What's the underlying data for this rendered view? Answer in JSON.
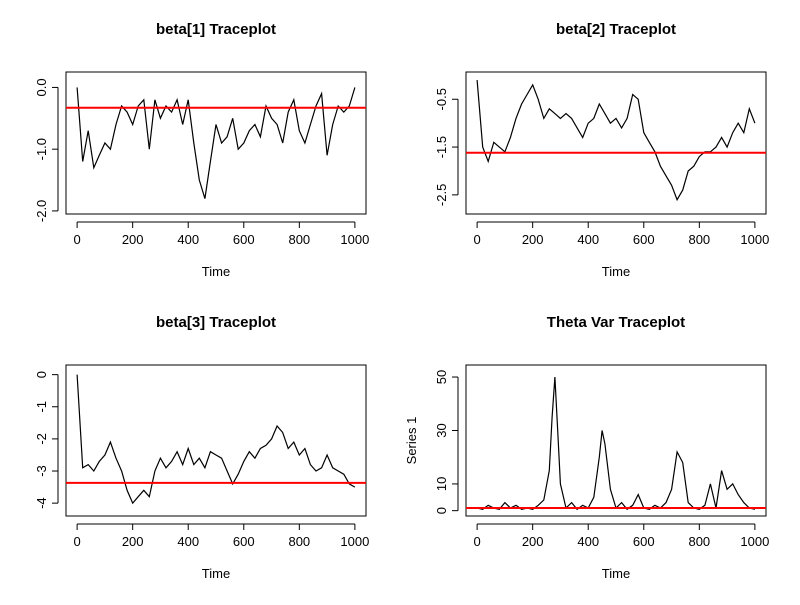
{
  "chart_data": [
    {
      "type": "line",
      "title": "beta[1] Traceplot",
      "xlabel": "Time",
      "xlim": [
        -40,
        1040
      ],
      "xticks": [
        0,
        200,
        400,
        600,
        800,
        1000
      ],
      "ylim": [
        -2.05,
        0.25
      ],
      "yticks": [
        {
          "value": 0,
          "label": "0.0"
        },
        {
          "value": -1,
          "label": "-1.0"
        },
        {
          "value": -2,
          "label": "-2.0"
        }
      ],
      "x": [
        0,
        20,
        40,
        60,
        80,
        100,
        120,
        140,
        160,
        180,
        200,
        220,
        240,
        260,
        280,
        300,
        320,
        340,
        360,
        380,
        400,
        420,
        440,
        460,
        480,
        500,
        520,
        540,
        560,
        580,
        600,
        620,
        640,
        660,
        680,
        700,
        720,
        740,
        760,
        780,
        800,
        820,
        840,
        860,
        880,
        900,
        920,
        940,
        960,
        980,
        1000
      ],
      "values": [
        0.0,
        -1.2,
        -0.7,
        -1.3,
        -1.1,
        -0.9,
        -1.0,
        -0.6,
        -0.3,
        -0.4,
        -0.6,
        -0.3,
        -0.2,
        -1.0,
        -0.2,
        -0.5,
        -0.3,
        -0.4,
        -0.2,
        -0.6,
        -0.2,
        -0.9,
        -1.5,
        -1.8,
        -1.2,
        -0.6,
        -0.9,
        -0.8,
        -0.5,
        -1.0,
        -0.9,
        -0.7,
        -0.6,
        -0.8,
        -0.3,
        -0.5,
        -0.6,
        -0.9,
        -0.4,
        -0.2,
        -0.7,
        -0.9,
        -0.6,
        -0.3,
        -0.1,
        -1.1,
        -0.6,
        -0.3,
        -0.4,
        -0.3,
        0.0
      ],
      "color": "#000000",
      "hline": {
        "value": -0.33,
        "color": "#ff0000"
      }
    },
    {
      "type": "line",
      "title": "beta[2] Traceplot",
      "xlabel": "Time",
      "xlim": [
        -40,
        1040
      ],
      "xticks": [
        0,
        200,
        400,
        600,
        800,
        1000
      ],
      "ylim": [
        -2.9,
        0.07
      ],
      "yticks": [
        -0.5,
        -1.5,
        -2.5
      ],
      "x": [
        0,
        20,
        40,
        60,
        80,
        100,
        120,
        140,
        160,
        180,
        200,
        220,
        240,
        260,
        280,
        300,
        320,
        340,
        360,
        380,
        400,
        420,
        440,
        460,
        480,
        500,
        520,
        540,
        560,
        580,
        600,
        620,
        640,
        660,
        680,
        700,
        720,
        740,
        760,
        780,
        800,
        820,
        840,
        860,
        880,
        900,
        920,
        940,
        960,
        980,
        1000
      ],
      "values": [
        -0.1,
        -1.5,
        -1.8,
        -1.4,
        -1.5,
        -1.6,
        -1.3,
        -0.9,
        -0.6,
        -0.4,
        -0.2,
        -0.5,
        -0.9,
        -0.7,
        -0.8,
        -0.9,
        -0.8,
        -0.9,
        -1.1,
        -1.3,
        -1.0,
        -0.9,
        -0.6,
        -0.8,
        -1.0,
        -0.9,
        -1.1,
        -0.9,
        -0.4,
        -0.5,
        -1.2,
        -1.4,
        -1.6,
        -1.9,
        -2.1,
        -2.3,
        -2.6,
        -2.4,
        -2.0,
        -1.9,
        -1.7,
        -1.6,
        -1.6,
        -1.5,
        -1.3,
        -1.5,
        -1.2,
        -1.0,
        -1.2,
        -0.7,
        -1.0
      ],
      "color": "#000000",
      "hline": {
        "value": -1.62,
        "color": "#ff0000"
      }
    },
    {
      "type": "line",
      "title": "beta[3] Traceplot",
      "xlabel": "Time",
      "xlim": [
        -40,
        1040
      ],
      "xticks": [
        0,
        200,
        400,
        600,
        800,
        1000
      ],
      "ylim": [
        -4.4,
        0.3
      ],
      "yticks": [
        0,
        -1,
        -2,
        -3,
        -4
      ],
      "x": [
        0,
        20,
        40,
        60,
        80,
        100,
        120,
        140,
        160,
        180,
        200,
        220,
        240,
        260,
        280,
        300,
        320,
        340,
        360,
        380,
        400,
        420,
        440,
        460,
        480,
        500,
        520,
        540,
        560,
        580,
        600,
        620,
        640,
        660,
        680,
        700,
        720,
        740,
        760,
        780,
        800,
        820,
        840,
        860,
        880,
        900,
        920,
        940,
        960,
        980,
        1000
      ],
      "values": [
        0.0,
        -2.9,
        -2.8,
        -3.0,
        -2.7,
        -2.5,
        -2.1,
        -2.6,
        -3.0,
        -3.6,
        -4.0,
        -3.8,
        -3.6,
        -3.8,
        -3.0,
        -2.6,
        -2.9,
        -2.7,
        -2.4,
        -2.8,
        -2.3,
        -2.8,
        -2.6,
        -2.9,
        -2.4,
        -2.5,
        -2.6,
        -3.0,
        -3.4,
        -3.1,
        -2.7,
        -2.4,
        -2.6,
        -2.3,
        -2.2,
        -2.0,
        -1.6,
        -1.8,
        -2.3,
        -2.1,
        -2.5,
        -2.3,
        -2.8,
        -3.0,
        -2.9,
        -2.5,
        -2.9,
        -3.0,
        -3.1,
        -3.4,
        -3.5
      ],
      "color": "#000000",
      "hline": {
        "value": -3.37,
        "color": "#ff0000"
      }
    },
    {
      "type": "line",
      "title": "Theta Var Traceplot",
      "xlabel": "Time",
      "ylabel": "Series 1",
      "xlim": [
        -40,
        1040
      ],
      "xticks": [
        0,
        200,
        400,
        600,
        800,
        1000
      ],
      "ylim": [
        -2,
        54.5
      ],
      "yticks": [
        0,
        10,
        30,
        50
      ],
      "x": [
        0,
        20,
        40,
        60,
        80,
        100,
        120,
        140,
        160,
        180,
        200,
        220,
        240,
        260,
        270,
        280,
        290,
        300,
        320,
        340,
        360,
        380,
        400,
        420,
        440,
        450,
        460,
        480,
        500,
        520,
        540,
        560,
        580,
        600,
        620,
        640,
        660,
        680,
        700,
        720,
        740,
        760,
        780,
        800,
        820,
        840,
        860,
        880,
        900,
        920,
        940,
        960,
        980,
        1000
      ],
      "values": [
        1,
        0.5,
        2,
        1,
        0.5,
        3,
        1,
        2,
        0.5,
        1,
        0.5,
        2,
        4,
        15,
        35,
        50,
        30,
        10,
        1,
        3,
        0.5,
        2,
        1,
        5,
        20,
        30,
        25,
        8,
        1,
        3,
        0.5,
        2,
        6,
        1,
        0.5,
        2,
        1,
        3,
        8,
        22,
        18,
        3,
        1,
        0.5,
        2,
        10,
        1,
        15,
        8,
        10,
        6,
        3,
        1,
        0.5
      ],
      "color": "#000000",
      "hline": {
        "value": 1,
        "color": "#ff0000"
      }
    }
  ]
}
